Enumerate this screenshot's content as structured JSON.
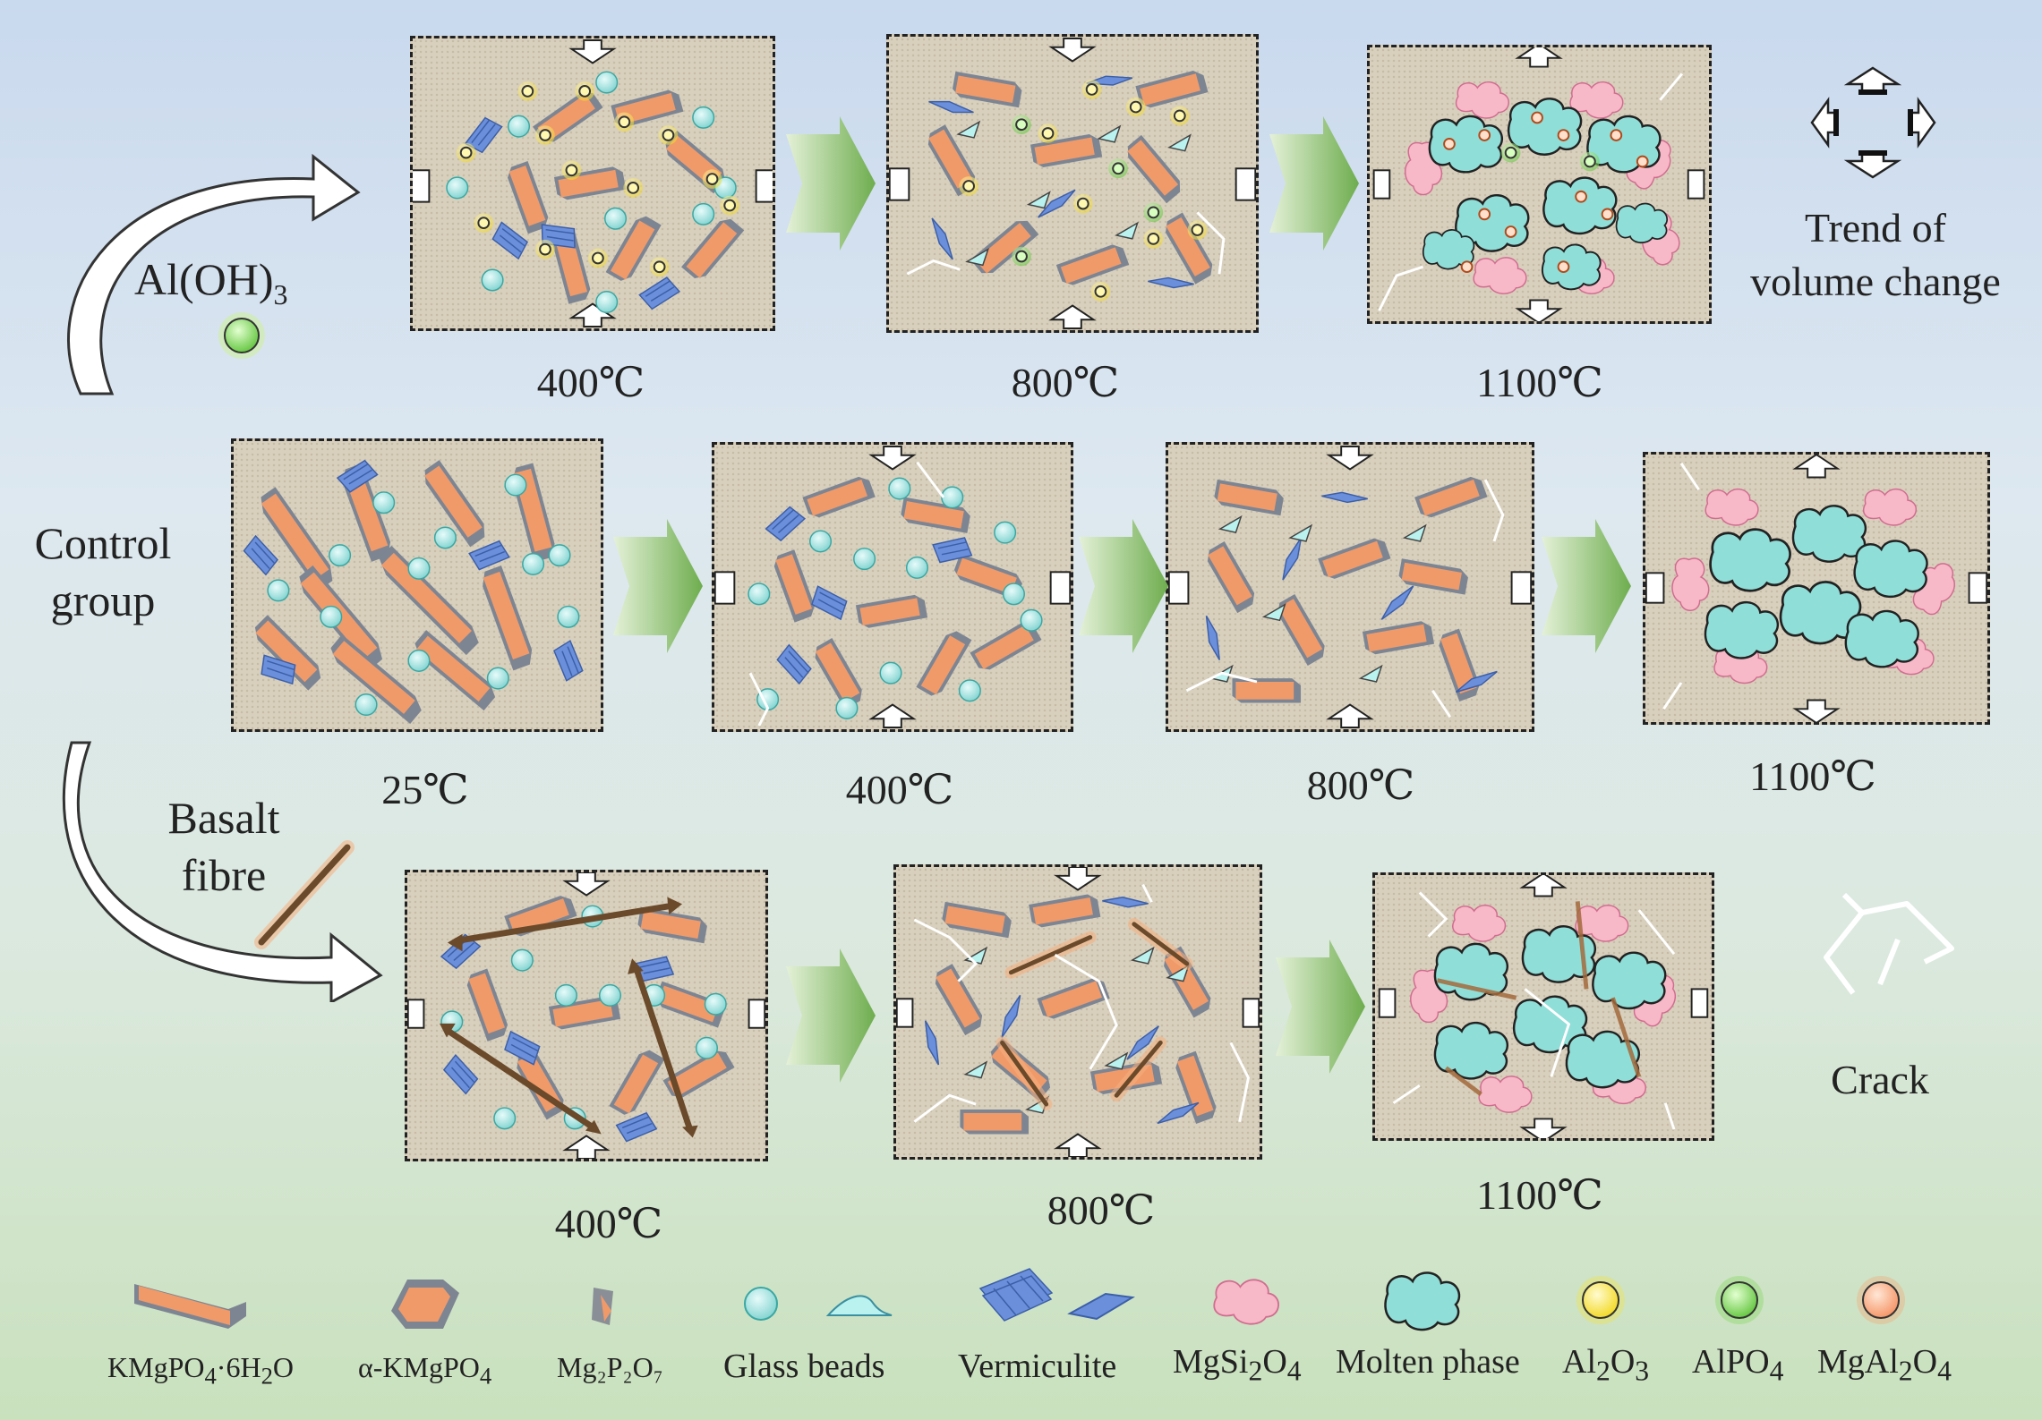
{
  "rows": {
    "aluminium": {
      "additive_label": "Al(OH)",
      "additive_sub": "3",
      "temps": [
        "400℃",
        "800℃",
        "1100℃"
      ]
    },
    "control": {
      "label_line1": "Control",
      "label_line2": "group",
      "temps": [
        "25℃",
        "400℃",
        "800℃",
        "1100℃"
      ]
    },
    "basalt": {
      "label_line1": "Basalt",
      "label_line2": "fibre",
      "temps": [
        "400℃",
        "800℃",
        "1100℃"
      ]
    }
  },
  "key": {
    "volume_line1": "Trend of",
    "volume_line2": "volume change",
    "crack": "Crack"
  },
  "legend": [
    {
      "label": "KMgPO",
      "sub": "4",
      "rest": "·6H",
      "sub2": "2",
      "rest2": "O"
    },
    {
      "label": "α-KMgPO",
      "sub": "4"
    },
    {
      "label": "Mg₂P₂O₇"
    },
    {
      "label": "Glass beads"
    },
    {
      "label": "Vermiculite"
    },
    {
      "label": "MgSi",
      "sub": "2",
      "rest": "O",
      "sub2": "4"
    },
    {
      "label": "Molten phase"
    },
    {
      "label": "Al",
      "sub": "2",
      "rest": "O",
      "sub2": "3"
    },
    {
      "label": "AlPO",
      "sub": "4"
    },
    {
      "label": "MgAl",
      "sub": "2",
      "rest": "O",
      "sub2": "4"
    }
  ],
  "colors": {
    "kmgpo": "#f09a6a",
    "kmgpo_edge": "#7d8592",
    "glass": "#9fe3e0",
    "vermiculite": "#6c8fdc",
    "mgsi": "#f7b8c8",
    "molten": "#8fded8",
    "al2o3": "#f6e23a",
    "alpo4": "#7ad354",
    "mgal2o4": "#f7a071",
    "arrow_green": "#7cb35a"
  }
}
